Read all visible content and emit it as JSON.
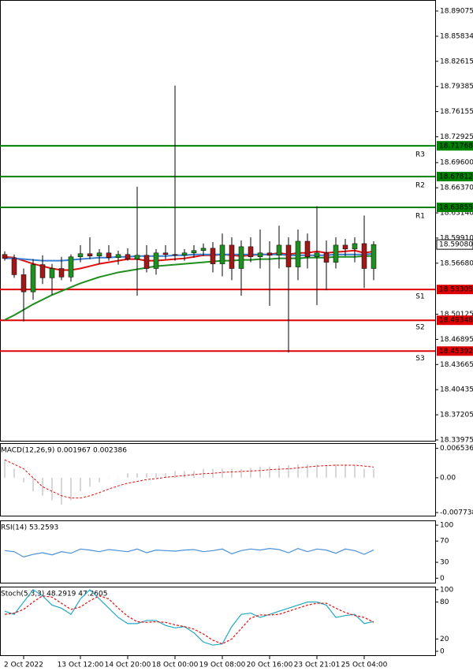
{
  "chart_data": [
    {
      "type": "candlestick",
      "categories": [
        null,
        "2 Oct 2022",
        null,
        null,
        null,
        null,
        null,
        "13 Oct 12:00",
        null,
        null,
        null,
        null,
        "14 Oct 20:00",
        null,
        null,
        null,
        null,
        "18 Oct 00:00",
        null,
        null,
        null,
        null,
        "19 Oct 08:00",
        null,
        null,
        null,
        null,
        "20 Oct 16:00",
        null,
        null,
        null,
        null,
        "23 Oct 21:01",
        null,
        null,
        null,
        null,
        "25 Oct 04:00",
        null,
        null
      ],
      "open": [
        18.578,
        18.573,
        18.552,
        18.53,
        18.565,
        18.548,
        18.56,
        18.549,
        18.575,
        18.579,
        18.576,
        18.58,
        18.574,
        18.578,
        18.572,
        18.577,
        18.56,
        18.58,
        18.578,
        18.577,
        18.58,
        18.583,
        18.586,
        18.566,
        18.59,
        18.56,
        18.588,
        18.575,
        18.58,
        18.577,
        18.59,
        18.562,
        18.595,
        18.575,
        18.58,
        18.568,
        18.59,
        18.585,
        18.592,
        18.56
      ],
      "high": [
        18.582,
        18.578,
        18.56,
        18.572,
        18.577,
        18.566,
        18.575,
        18.578,
        18.59,
        18.6,
        18.585,
        18.59,
        18.583,
        18.586,
        18.665,
        18.59,
        18.585,
        18.59,
        18.795,
        18.585,
        18.59,
        18.592,
        18.594,
        18.605,
        18.6,
        18.596,
        18.6,
        18.61,
        18.595,
        18.615,
        18.6,
        18.61,
        18.605,
        18.64,
        18.596,
        18.6,
        18.598,
        18.6,
        18.628,
        18.595
      ],
      "low": [
        18.57,
        18.548,
        18.492,
        18.52,
        18.54,
        18.526,
        18.545,
        18.543,
        18.568,
        18.572,
        18.566,
        18.57,
        18.565,
        18.57,
        18.525,
        18.555,
        18.552,
        18.572,
        18.57,
        18.57,
        18.574,
        18.576,
        18.555,
        18.55,
        18.545,
        18.525,
        18.568,
        18.56,
        18.512,
        18.56,
        18.452,
        18.545,
        18.56,
        18.513,
        18.532,
        18.56,
        18.576,
        18.568,
        18.535,
        18.545
      ],
      "close": [
        18.573,
        18.552,
        18.53,
        18.565,
        18.548,
        18.56,
        18.549,
        18.575,
        18.579,
        18.576,
        18.58,
        18.574,
        18.578,
        18.572,
        18.577,
        18.56,
        18.58,
        18.578,
        18.577,
        18.58,
        18.583,
        18.586,
        18.566,
        18.59,
        18.56,
        18.588,
        18.575,
        18.58,
        18.577,
        18.59,
        18.562,
        18.595,
        18.575,
        18.58,
        18.568,
        18.59,
        18.585,
        18.592,
        18.56,
        18.5908
      ],
      "up_color": "#1f8f1f",
      "down_color": "#a01818",
      "wick_color": "#000000",
      "lines": [
        {
          "color": "#e01010",
          "values": [
            18.575,
            18.574,
            18.57,
            18.566,
            18.563,
            18.56,
            18.558,
            18.558,
            18.56,
            18.563,
            18.566,
            18.568,
            18.57,
            18.572,
            18.572,
            18.57,
            18.57,
            18.571,
            18.572,
            18.573,
            18.575,
            18.577,
            18.577,
            18.578,
            18.577,
            18.576,
            18.577,
            18.578,
            18.578,
            18.58,
            18.578,
            18.58,
            18.58,
            18.582,
            18.58,
            18.581,
            18.582,
            18.583,
            18.58,
            18.582
          ]
        },
        {
          "color": "#3a7fd5",
          "values": [
            18.573,
            18.573,
            18.572,
            18.571,
            18.57,
            18.57,
            18.57,
            18.571,
            18.572,
            18.573,
            18.574,
            18.574,
            18.575,
            18.575,
            18.576,
            18.576,
            18.576,
            18.576,
            18.577,
            18.577,
            18.578,
            18.578,
            18.578,
            18.578,
            18.578,
            18.578,
            18.578,
            18.578,
            18.578,
            18.578,
            18.577,
            18.577,
            18.577,
            18.577,
            18.577,
            18.578,
            18.578,
            18.578,
            18.578,
            18.579
          ]
        },
        {
          "color": "#1f8f1f",
          "values": [
            18.494,
            18.5,
            18.507,
            18.514,
            18.52,
            18.526,
            18.531,
            18.536,
            18.541,
            18.545,
            18.549,
            18.552,
            18.555,
            18.557,
            18.559,
            18.561,
            18.563,
            18.564,
            18.565,
            18.566,
            18.567,
            18.568,
            18.569,
            18.57,
            18.57,
            18.571,
            18.571,
            18.572,
            18.572,
            18.573,
            18.573,
            18.573,
            18.574,
            18.574,
            18.574,
            18.575,
            18.575,
            18.575,
            18.576,
            18.576
          ]
        }
      ],
      "levels": [
        {
          "name": "R3",
          "value": 18.71768,
          "color": "#008000"
        },
        {
          "name": "R2",
          "value": 18.67812,
          "color": "#008000"
        },
        {
          "name": "R1",
          "value": 18.63855,
          "color": "#008000"
        },
        {
          "name": "S1",
          "value": 18.53305,
          "color": "#e00000"
        },
        {
          "name": "S2",
          "value": 18.49348,
          "color": "#e00000"
        },
        {
          "name": "S3",
          "value": 18.45392,
          "color": "#e00000"
        }
      ],
      "last": {
        "value": 18.5908,
        "label": "18.59080"
      },
      "ylim": [
        18.3377,
        18.9049
      ],
      "yticks": [
        18.89075,
        18.85834,
        18.82615,
        18.79385,
        18.76155,
        18.72925,
        {
          "value": 18.696,
          "label": "18.69600"
        },
        {
          "value": 18.6637,
          "label": "18.66370"
        },
        {
          "value": 18.6314,
          "label": "18.63140"
        },
        {
          "value": 18.5991,
          "label": "18.59910"
        },
        {
          "value": 18.5668,
          "label": "18.56680"
        },
        18.50125,
        18.46895,
        18.43665,
        18.40435,
        18.37205,
        18.33975
      ]
    },
    {
      "type": "macd",
      "title": "MACD(12,26,9) 0.001967 0.002386",
      "values": [
        0.004,
        0.002,
        -0.001,
        -0.003,
        -0.004,
        -0.005,
        -0.006,
        -0.005,
        -0.003,
        -0.002,
        -0.001,
        0,
        0,
        0.001,
        0.001,
        0.001,
        0.001,
        0.001,
        0.0015,
        0.0015,
        0.0015,
        0.002,
        0.002,
        0.002,
        0.002,
        0.002,
        0.0022,
        0.0025,
        0.0025,
        0.0027,
        0.0028,
        0.003,
        0.003,
        0.003,
        0.0028,
        0.003,
        0.003,
        0.0028,
        0.002,
        0.001967
      ],
      "color": "#b0b0b0",
      "signal": {
        "color": "#e01010",
        "values": [
          0.004,
          0.003,
          0.002,
          0,
          -0.002,
          -0.003,
          -0.004,
          -0.0045,
          -0.0045,
          -0.004,
          -0.0033,
          -0.0025,
          -0.0018,
          -0.0012,
          -0.0008,
          -0.0004,
          -0.0002,
          0.0001,
          0.0003,
          0.0005,
          0.0007,
          0.0009,
          0.001,
          0.0012,
          0.0013,
          0.0014,
          0.0015,
          0.0016,
          0.0018,
          0.0019,
          0.002,
          0.0022,
          0.0024,
          0.0026,
          0.0027,
          0.0028,
          0.0028,
          0.0028,
          0.0026,
          0.002386
        ]
      },
      "ylim": [
        -0.0086,
        0.0077
      ],
      "yticks": [
        0.006536,
        {
          "value": 0,
          "label": "0.00"
        },
        -0.007738
      ]
    },
    {
      "type": "line",
      "title": "RSI(14) 53.2593",
      "series": [
        {
          "color": "#4a90d9",
          "dash": false,
          "values": [
            52,
            50,
            40,
            45,
            48,
            44,
            50,
            47,
            55,
            53,
            50,
            54,
            52,
            50,
            55,
            48,
            53,
            52,
            51,
            53,
            54,
            50,
            52,
            55,
            46,
            52,
            55,
            53,
            56,
            54,
            48,
            56,
            50,
            55,
            53,
            47,
            55,
            52,
            45,
            53.2593
          ]
        }
      ],
      "ylim": [
        -10,
        109
      ],
      "yticks": [
        100,
        70,
        30,
        0
      ]
    },
    {
      "type": "line",
      "title": "Stoch(5,3,3) 48.2919 47.2605",
      "series": [
        {
          "color": "#22a8c4",
          "dash": false,
          "values": [
            65,
            60,
            80,
            100,
            90,
            75,
            70,
            60,
            85,
            100,
            85,
            70,
            55,
            45,
            45,
            50,
            50,
            42,
            38,
            40,
            30,
            15,
            10,
            12,
            40,
            60,
            62,
            55,
            60,
            65,
            70,
            75,
            80,
            80,
            75,
            55,
            58,
            60,
            45,
            48.2919
          ]
        },
        {
          "color": "#e01010",
          "dash": true,
          "values": [
            60,
            62,
            68,
            80,
            90,
            88,
            78,
            68,
            72,
            82,
            90,
            85,
            70,
            57,
            48,
            47,
            48,
            47,
            43,
            40,
            36,
            28,
            18,
            12,
            20,
            37,
            54,
            59,
            59,
            60,
            65,
            70,
            75,
            78,
            78,
            70,
            63,
            58,
            55,
            47.2605
          ]
        }
      ],
      "ylim": [
        -7.7,
        105
      ],
      "yticks": [
        100,
        80,
        20,
        0
      ]
    }
  ]
}
